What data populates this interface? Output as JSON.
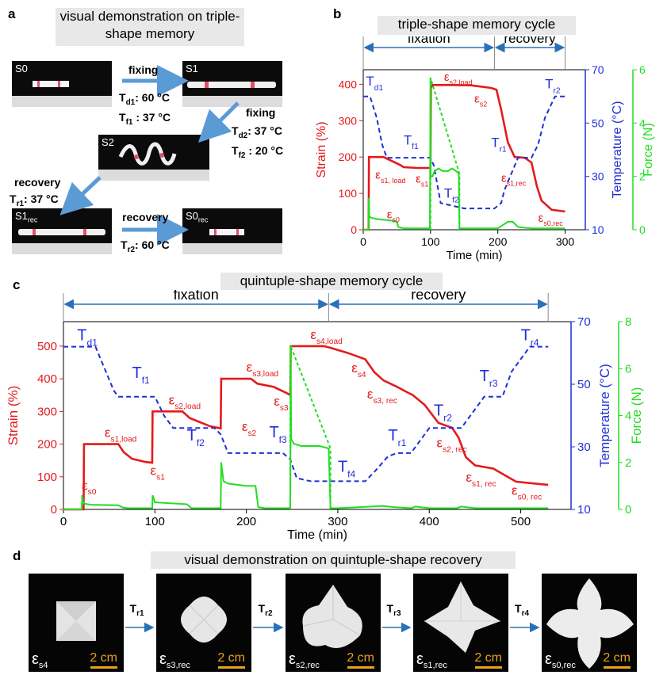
{
  "panel_a": {
    "label": "a",
    "title": "visual demonstration on triple-shape memory",
    "photos": {
      "s0": "S0",
      "s1": "S1",
      "s2": "S2",
      "s1rec_main": "S1",
      "s1rec_sub": "rec",
      "s0rec_main": "S0",
      "s0rec_sub": "rec"
    },
    "steps": {
      "fixing1": "fixing",
      "fixing1_cond1": "T",
      "fixing1_cond1_sub": "d1",
      "fixing1_cond1_val": ": 60 °C",
      "fixing1_cond2": "T",
      "fixing1_cond2_sub": "f1",
      "fixing1_cond2_val": " : 37 °C",
      "fixing2": "fixing",
      "fixing2_cond1": "T",
      "fixing2_cond1_sub": "d2",
      "fixing2_cond1_val": ": 37 °C",
      "fixing2_cond2": "T",
      "fixing2_cond2_sub": "f2",
      "fixing2_cond2_val": " : 20 °C",
      "recovery1": "recovery",
      "recovery1_cond": "T",
      "recovery1_cond_sub": "r1",
      "recovery1_cond_val": ": 37 °C",
      "recovery2": "recovery",
      "recovery2_cond": "T",
      "recovery2_cond_sub": "r2",
      "recovery2_cond_val": ": 60 °C"
    }
  },
  "panel_b": {
    "label": "b",
    "title": "triple-shape memory cycle",
    "phase_fixation": "fixation",
    "phase_recovery": "recovery",
    "xlabel": "Time (min)",
    "ylabel_left": "Strain  (%)",
    "ylabel_right1": "Temperature  (°C)",
    "ylabel_right2": "Force (N)",
    "x_ticks": [
      "0",
      "100",
      "200",
      "300"
    ],
    "y_ticks": [
      "0",
      "100",
      "200",
      "300",
      "400"
    ],
    "temp_ticks": [
      "10",
      "30",
      "50",
      "70"
    ],
    "force_ticks": [
      "0",
      "2",
      "4",
      "6"
    ],
    "annotations": {
      "td1": "T",
      "td1_sub": "d1",
      "tf1": "T",
      "tf1_sub": "f1",
      "tf2": "T",
      "tf2_sub": "f2",
      "tr1": "T",
      "tr1_sub": "r1",
      "tr2": "T",
      "tr2_sub": "r2",
      "es2load": "ε",
      "es2load_sub": "s2,load",
      "es2": "ε",
      "es2_sub": "s2",
      "es1load": "ε",
      "es1load_sub": "s1, load",
      "es1": "ε",
      "es1_sub": "s1",
      "es1rec": "ε",
      "es1rec_sub": "s1,rec",
      "es0": "ε",
      "es0_sub": "s0",
      "es0rec": "ε",
      "es0rec_sub": "s0,rec"
    }
  },
  "panel_c": {
    "label": "c",
    "title": "quintuple-shape memory cycle",
    "phase_fixation": "fixation",
    "phase_recovery": "recovery",
    "xlabel": "Time (min)",
    "ylabel_left": "Strain  (%)",
    "ylabel_right1": "Temperature  (°C)",
    "ylabel_right2": "Force (N)",
    "x_ticks": [
      "0",
      "100",
      "200",
      "300",
      "400",
      "500"
    ],
    "y_ticks": [
      "0",
      "100",
      "200",
      "300",
      "400",
      "500"
    ],
    "temp_ticks": [
      "10",
      "30",
      "50",
      "70"
    ],
    "force_ticks": [
      "0",
      "2",
      "4",
      "6",
      "8"
    ],
    "annotations": {
      "td1": "T",
      "td1_sub": "d1",
      "tf1": "T",
      "tf1_sub": "f1",
      "tf2": "T",
      "tf2_sub": "f2",
      "tf3": "T",
      "tf3_sub": "f3",
      "tf4": "T",
      "tf4_sub": "f4",
      "tr1": "T",
      "tr1_sub": "r1",
      "tr2": "T",
      "tr2_sub": "r2",
      "tr3": "T",
      "tr3_sub": "r3",
      "tr4": "T",
      "tr4_sub": "r4",
      "es1load": "ε",
      "es1load_sub": "s1,load",
      "es2load": "ε",
      "es2load_sub": "s2,load",
      "es3load": "ε",
      "es3load_sub": "s3,load",
      "es4load": "ε",
      "es4load_sub": "s4,load",
      "es1": "ε",
      "es1_sub": "s1",
      "es2": "ε",
      "es2_sub": "s2",
      "es3": "ε",
      "es3_sub": "s3",
      "es4": "ε",
      "es4_sub": "s4",
      "es0": "ε",
      "es0_sub": "s0",
      "es3rec": "ε",
      "es3rec_sub": "s3, rec",
      "es2rec": "ε",
      "es2rec_sub": "s2, rec",
      "es1rec": "ε",
      "es1rec_sub": "s1, rec",
      "es0rec": "ε",
      "es0rec_sub": "s0, rec"
    }
  },
  "panel_d": {
    "label": "d",
    "title": "visual demonstration on quintuple-shape recovery",
    "scale": "2 cm",
    "photos": [
      {
        "eps": "ε",
        "sub": "s4"
      },
      {
        "eps": "ε",
        "sub": "s3,rec"
      },
      {
        "eps": "ε",
        "sub": "s2,rec"
      },
      {
        "eps": "ε",
        "sub": "s1,rec"
      },
      {
        "eps": "ε",
        "sub": "s0,rec"
      }
    ],
    "arrows": [
      {
        "t": "T",
        "sub": "r1"
      },
      {
        "t": "T",
        "sub": "r2"
      },
      {
        "t": "T",
        "sub": "r3"
      },
      {
        "t": "T",
        "sub": "r4"
      }
    ]
  },
  "colors": {
    "strain": "#e41a1c",
    "temperature": "#1f2fd6",
    "force": "#22dd22",
    "phase_arrow": "#2a70b8",
    "step_arrow": "#5b9bd5",
    "scale_bar": "#e8a020"
  },
  "chart_data": [
    {
      "id": "triple",
      "type": "line",
      "title": "triple-shape memory cycle",
      "xlabel": "Time (min)",
      "xlim": [
        0,
        330
      ],
      "y_left": {
        "label": "Strain  (%)",
        "lim": [
          0,
          440
        ]
      },
      "y_right1": {
        "label": "Temperature  (°C)",
        "lim": [
          10,
          70
        ]
      },
      "y_right2": {
        "label": "Force (N)",
        "lim": [
          0,
          6
        ]
      },
      "series": [
        {
          "name": "Strain",
          "axis": "left",
          "style": "solid",
          "x": [
            0,
            8,
            8.5,
            10,
            30,
            55,
            60,
            80,
            95,
            100,
            100.5,
            103,
            130,
            160,
            190,
            198,
            205,
            215,
            225,
            240,
            250,
            258,
            265,
            280,
            300
          ],
          "y": [
            0,
            0,
            200,
            200,
            200,
            178,
            172,
            170,
            170,
            170,
            390,
            398,
            398,
            397,
            390,
            385,
            330,
            240,
            200,
            198,
            185,
            120,
            80,
            55,
            50
          ]
        },
        {
          "name": "Temperature",
          "axis": "right1",
          "style": "dash",
          "x": [
            0,
            10,
            20,
            28,
            35,
            45,
            100,
            105,
            115,
            150,
            195,
            205,
            210,
            230,
            250,
            260,
            270,
            285,
            300
          ],
          "y": [
            60,
            60,
            52,
            42,
            37,
            37,
            37,
            34,
            20,
            18,
            18,
            20,
            25,
            37,
            37,
            42,
            52,
            60,
            60
          ]
        },
        {
          "name": "Force",
          "axis": "right2",
          "style": "solid",
          "x": [
            0,
            8,
            8.2,
            9,
            12,
            20,
            40,
            50,
            52,
            60,
            95,
            99,
            100,
            100.2,
            101,
            103,
            106,
            112,
            118,
            126,
            132,
            138,
            142,
            143,
            150,
            200,
            215,
            222,
            230,
            250,
            300
          ],
          "y": [
            0,
            0,
            1.2,
            0.5,
            0.45,
            0.4,
            0.35,
            0.3,
            0.1,
            0.05,
            0.05,
            0.05,
            5.7,
            2.1,
            2.0,
            2.0,
            2.2,
            2.3,
            2.2,
            2.2,
            2.3,
            2.2,
            2.1,
            0.05,
            0.05,
            0.05,
            0.3,
            0.3,
            0.1,
            0.05,
            0.05
          ]
        },
        {
          "name": "Force (dashed)",
          "axis": "right2",
          "style": "dash",
          "x": [
            100,
            100,
            143,
            143
          ],
          "y": [
            0,
            5.7,
            2.1,
            0
          ]
        }
      ]
    },
    {
      "id": "quintuple",
      "type": "line",
      "title": "quintuple-shape memory cycle",
      "xlabel": "Time (min)",
      "xlim": [
        0,
        555
      ],
      "y_left": {
        "label": "Strain  (%)",
        "lim": [
          0,
          575
        ]
      },
      "y_right1": {
        "label": "Temperature  (°C)",
        "lim": [
          10,
          70
        ]
      },
      "y_right2": {
        "label": "Force (N)",
        "lim": [
          0,
          8
        ]
      },
      "series": [
        {
          "name": "Strain",
          "axis": "left",
          "style": "solid",
          "x": [
            0,
            22,
            22.5,
            30,
            60,
            66,
            75,
            90,
            97,
            97.5,
            105,
            130,
            138,
            160,
            172,
            172.5,
            180,
            205,
            212,
            230,
            245,
            248,
            248.5,
            255,
            285,
            292,
            310,
            330,
            340,
            350,
            365,
            375,
            382,
            395,
            410,
            425,
            432,
            440,
            450,
            470,
            495,
            530
          ],
          "y": [
            0,
            0,
            200,
            200,
            200,
            175,
            155,
            145,
            143,
            300,
            300,
            300,
            280,
            255,
            248,
            400,
            400,
            400,
            385,
            375,
            355,
            350,
            500,
            500,
            500,
            495,
            480,
            460,
            420,
            395,
            375,
            360,
            350,
            320,
            265,
            250,
            220,
            160,
            135,
            125,
            85,
            75
          ]
        },
        {
          "name": "Temperature",
          "axis": "right1",
          "style": "dash",
          "x": [
            0,
            25,
            35,
            45,
            55,
            60,
            90,
            100,
            110,
            120,
            165,
            172,
            180,
            195,
            240,
            248,
            255,
            270,
            290,
            300,
            330,
            340,
            355,
            365,
            380,
            390,
            400,
            420,
            435,
            445,
            460,
            470,
            480,
            490,
            510,
            530
          ],
          "y": [
            62,
            62,
            62,
            55,
            48,
            46,
            46,
            46,
            40,
            36,
            36,
            34,
            28,
            28,
            28,
            26,
            20,
            19,
            19,
            19,
            19,
            22,
            27,
            28,
            28,
            32,
            36,
            36,
            36,
            40,
            46,
            46,
            46,
            54,
            62,
            62
          ]
        },
        {
          "name": "Force",
          "axis": "right2",
          "style": "solid",
          "x": [
            0,
            20,
            20.5,
            22,
            30,
            60,
            65,
            70,
            95,
            97,
            97.5,
            100,
            135,
            140,
            160,
            170,
            172,
            172.5,
            175,
            180,
            200,
            210,
            213,
            220,
            245,
            248,
            248.5,
            249,
            252,
            260,
            280,
            290,
            292,
            300,
            350,
            360,
            380,
            385,
            400,
            430,
            435,
            450,
            530
          ],
          "y": [
            0,
            0,
            0.6,
            0.25,
            0.2,
            0.18,
            0.08,
            0.05,
            0.05,
            0.05,
            0.6,
            0.3,
            0.22,
            0.05,
            0.05,
            0.05,
            0.05,
            2.0,
            1.2,
            1.1,
            1.0,
            1.0,
            0.1,
            0.05,
            0.05,
            0.05,
            7.0,
            3.0,
            2.8,
            2.7,
            2.7,
            2.6,
            0.05,
            0.05,
            0.15,
            0.1,
            0.05,
            0.12,
            0.05,
            0.05,
            0.12,
            0.05,
            0.05
          ]
        },
        {
          "name": "Force (dashed)",
          "axis": "right2",
          "style": "dash",
          "x": [
            248,
            248,
            292,
            292
          ],
          "y": [
            0,
            7.0,
            2.6,
            0
          ]
        }
      ]
    }
  ]
}
